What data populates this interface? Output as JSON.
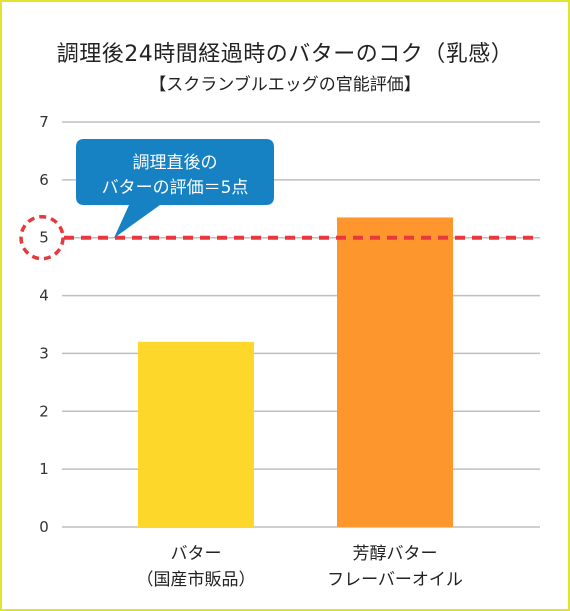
{
  "chart_data": {
    "type": "bar",
    "title": "調理後24時間経過時のバターのコク（乳感）",
    "subtitle": "【スクランブルエッグの官能評価】",
    "categories": [
      {
        "line1": "バター",
        "line2": "（国産市販品）"
      },
      {
        "line1": "芳醇バター",
        "line2": "フレーバーオイル"
      }
    ],
    "values": [
      3.2,
      5.35
    ],
    "ylim": [
      0,
      7
    ],
    "yticks": [
      0,
      1,
      2,
      3,
      4,
      5,
      6,
      7
    ],
    "grid": true,
    "reference_line": {
      "value": 5
    },
    "callout": {
      "line1": "調理直後の",
      "line2": "バターの評価＝5点"
    },
    "colors": {
      "bar_1": "#fdd72a",
      "bar_2": "#fd962c",
      "reference_line": "#e8383d",
      "callout_bg": "#1681c3",
      "grid": "#bfbfbf",
      "frame_border": "#e2e230"
    }
  }
}
